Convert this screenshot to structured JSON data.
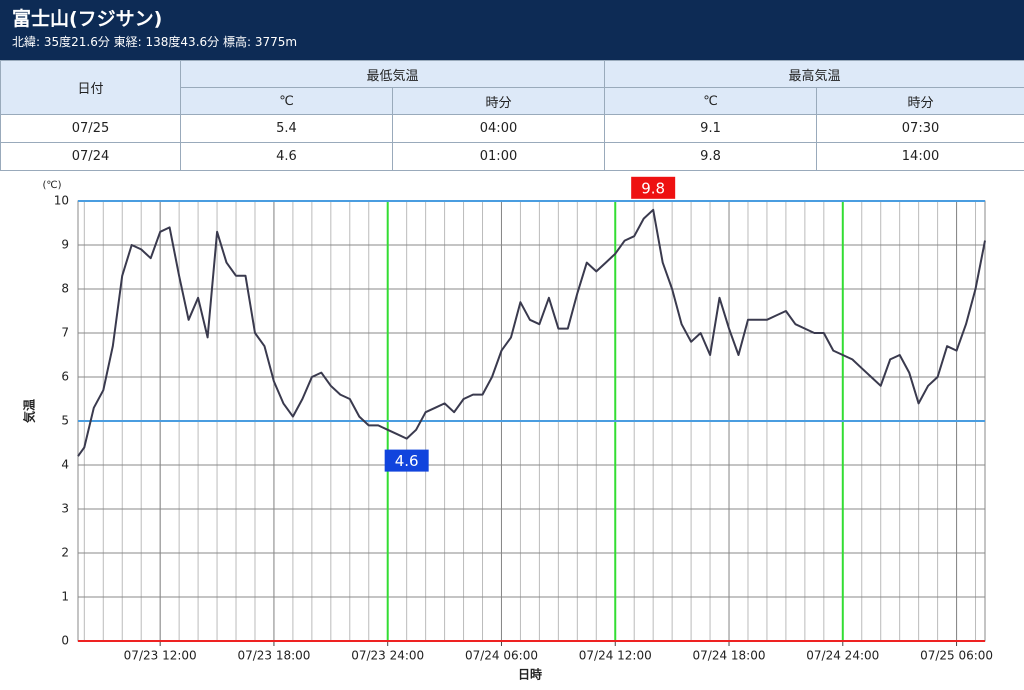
{
  "header": {
    "title": "富士山(フジサン)",
    "subtitle": "北緯: 35度21.6分 東経: 138度43.6分 標高: 3775m"
  },
  "table": {
    "headers": [
      "日付",
      "最低気温",
      "最高気温"
    ],
    "subheaders": [
      "℃",
      "時分",
      "℃",
      "時分"
    ],
    "rows": [
      [
        "07/25",
        5.4,
        "04:00",
        9.1,
        "07:30"
      ],
      [
        "07/24",
        4.6,
        "01:00",
        9.8,
        "14:00"
      ]
    ]
  },
  "chart_data": {
    "type": "line",
    "x_label": "日時",
    "y_label": "気温",
    "y_unit": "(℃)",
    "x": [
      "07/23 07:40",
      "07/23 08:00",
      "07/23 08:30",
      "07/23 09:00",
      "07/23 09:30",
      "07/23 10:00",
      "07/23 10:30",
      "07/23 11:00",
      "07/23 11:30",
      "07/23 12:00",
      "07/23 12:30",
      "07/23 13:00",
      "07/23 13:30",
      "07/23 14:00",
      "07/23 14:30",
      "07/23 15:00",
      "07/23 15:30",
      "07/23 16:00",
      "07/23 16:30",
      "07/23 17:00",
      "07/23 17:30",
      "07/23 18:00",
      "07/23 18:30",
      "07/23 19:00",
      "07/23 19:30",
      "07/23 20:00",
      "07/23 20:30",
      "07/23 21:00",
      "07/23 21:30",
      "07/23 22:00",
      "07/23 22:30",
      "07/23 23:00",
      "07/23 23:30",
      "07/24 00:00",
      "07/24 00:30",
      "07/24 01:00",
      "07/24 01:30",
      "07/24 02:00",
      "07/24 02:30",
      "07/24 03:00",
      "07/24 03:30",
      "07/24 04:00",
      "07/24 04:30",
      "07/24 05:00",
      "07/24 05:30",
      "07/24 06:00",
      "07/24 06:30",
      "07/24 07:00",
      "07/24 07:30",
      "07/24 08:00",
      "07/24 08:30",
      "07/24 09:00",
      "07/24 09:30",
      "07/24 10:00",
      "07/24 10:30",
      "07/24 11:00",
      "07/24 11:30",
      "07/24 12:00",
      "07/24 12:30",
      "07/24 13:00",
      "07/24 13:30",
      "07/24 14:00",
      "07/24 14:30",
      "07/24 15:00",
      "07/24 15:30",
      "07/24 16:00",
      "07/24 16:30",
      "07/24 17:00",
      "07/24 17:30",
      "07/24 18:00",
      "07/24 18:30",
      "07/24 19:00",
      "07/24 19:30",
      "07/24 20:00",
      "07/24 20:30",
      "07/24 21:00",
      "07/24 21:30",
      "07/24 22:00",
      "07/24 22:30",
      "07/24 23:00",
      "07/24 23:30",
      "07/25 00:00",
      "07/25 00:30",
      "07/25 01:00",
      "07/25 01:30",
      "07/25 02:00",
      "07/25 02:30",
      "07/25 03:00",
      "07/25 03:30",
      "07/25 04:00",
      "07/25 04:30",
      "07/25 05:00",
      "07/25 05:30",
      "07/25 06:00",
      "07/25 06:30",
      "07/25 07:00",
      "07/25 07:30"
    ],
    "values": [
      4.2,
      4.4,
      5.3,
      5.7,
      6.7,
      8.3,
      9.0,
      8.9,
      8.7,
      9.3,
      9.4,
      8.3,
      7.3,
      7.8,
      6.9,
      9.3,
      8.6,
      8.3,
      8.3,
      7.0,
      6.7,
      5.9,
      5.4,
      5.1,
      5.5,
      6.0,
      6.1,
      5.8,
      5.6,
      5.5,
      5.1,
      4.9,
      4.9,
      4.8,
      4.7,
      4.6,
      4.8,
      5.2,
      5.3,
      5.4,
      5.2,
      5.5,
      5.6,
      5.6,
      6.0,
      6.6,
      6.9,
      7.7,
      7.3,
      7.2,
      7.8,
      7.1,
      7.1,
      7.9,
      8.6,
      8.4,
      8.6,
      8.8,
      9.1,
      9.2,
      9.6,
      9.8,
      8.6,
      8.0,
      7.2,
      6.8,
      7.0,
      6.5,
      7.8,
      7.1,
      6.5,
      7.3,
      7.3,
      7.3,
      7.4,
      7.5,
      7.2,
      7.1,
      7.0,
      7.0,
      6.6,
      6.5,
      6.4,
      6.2,
      6.0,
      5.8,
      6.4,
      6.5,
      6.1,
      5.4,
      5.8,
      6.0,
      6.7,
      6.6,
      7.2,
      8.0,
      9.1
    ],
    "color": "#3a3a4e",
    "xlim": [
      "07/23 07:40",
      "07/25 07:30"
    ],
    "xticks": [
      "07/23 12:00",
      "07/23 18:00",
      "07/23 24:00",
      "07/24 06:00",
      "07/24 12:00",
      "07/24 18:00",
      "07/24 24:00",
      "07/25 06:00"
    ],
    "ylim": [
      0,
      10
    ],
    "yticks": [
      0,
      1,
      2,
      3,
      4,
      5,
      6,
      7,
      8,
      9,
      10
    ],
    "grid": true,
    "x_marker_lines": {
      "values": [
        "07/23 24:00",
        "07/24 12:00",
        "07/24 24:00"
      ],
      "color": "#33dd33"
    },
    "y_marker_lines": [
      {
        "value": 0,
        "color": "#ee2222"
      },
      {
        "value": 5,
        "color": "#4a9de0"
      },
      {
        "value": 10,
        "color": "#4a9de0"
      }
    ],
    "annotations": [
      {
        "x": "07/24 14:00",
        "y": 9.8,
        "color": "#ee1111"
      },
      {
        "x": "07/24 01:00",
        "y": 4.6,
        "color": "#1144dd"
      }
    ]
  }
}
